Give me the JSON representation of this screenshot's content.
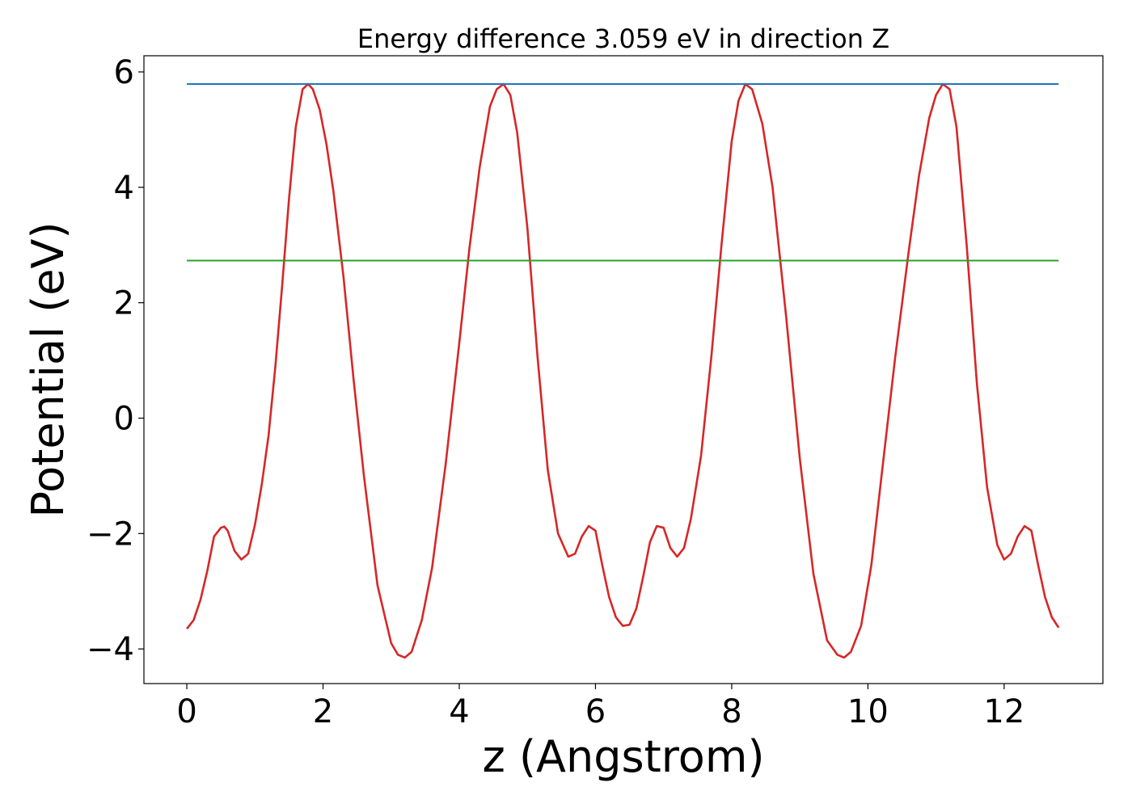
{
  "chart_data": {
    "type": "line",
    "title": "Energy difference 3.059 eV in direction Z",
    "xlabel": "z (Angstrom)",
    "ylabel": "Potential (eV)",
    "xlim": [
      -0.63,
      13.45
    ],
    "ylim": [
      -4.6,
      6.28
    ],
    "xticks": [
      0,
      2,
      4,
      6,
      8,
      10,
      12
    ],
    "yticks": [
      -4,
      -2,
      0,
      2,
      4,
      6
    ],
    "grid": false,
    "legend": "none",
    "series": [
      {
        "color": "#d62728",
        "x": [
          0.0,
          0.1,
          0.2,
          0.3,
          0.4,
          0.5,
          0.55,
          0.6,
          0.7,
          0.8,
          0.9,
          1.0,
          1.1,
          1.2,
          1.3,
          1.4,
          1.5,
          1.6,
          1.7,
          1.78,
          1.85,
          1.95,
          2.05,
          2.15,
          2.3,
          2.45,
          2.6,
          2.8,
          3.0,
          3.1,
          3.2,
          3.3,
          3.45,
          3.6,
          3.8,
          4.0,
          4.15,
          4.3,
          4.45,
          4.55,
          4.65,
          4.75,
          4.85,
          5.0,
          5.15,
          5.3,
          5.45,
          5.6,
          5.7,
          5.8,
          5.9,
          6.0,
          6.1,
          6.2,
          6.3,
          6.4,
          6.5,
          6.6,
          6.7,
          6.8,
          6.9,
          7.0,
          7.1,
          7.2,
          7.3,
          7.4,
          7.55,
          7.7,
          7.85,
          8.0,
          8.1,
          8.2,
          8.3,
          8.45,
          8.6,
          8.8,
          9.0,
          9.2,
          9.4,
          9.55,
          9.65,
          9.75,
          9.9,
          10.05,
          10.2,
          10.4,
          10.6,
          10.75,
          10.9,
          11.0,
          11.1,
          11.2,
          11.3,
          11.45,
          11.6,
          11.75,
          11.9,
          12.0,
          12.1,
          12.2,
          12.3,
          12.4,
          12.5,
          12.6,
          12.7,
          12.8
        ],
        "y": [
          -3.65,
          -3.5,
          -3.15,
          -2.65,
          -2.05,
          -1.9,
          -1.88,
          -1.95,
          -2.3,
          -2.45,
          -2.35,
          -1.85,
          -1.15,
          -0.3,
          0.9,
          2.3,
          3.8,
          5.05,
          5.7,
          5.79,
          5.7,
          5.35,
          4.75,
          3.95,
          2.45,
          0.65,
          -1.0,
          -2.9,
          -3.9,
          -4.1,
          -4.15,
          -4.05,
          -3.5,
          -2.6,
          -0.8,
          1.3,
          2.95,
          4.35,
          5.4,
          5.7,
          5.79,
          5.6,
          4.95,
          3.3,
          1.05,
          -0.9,
          -2.0,
          -2.4,
          -2.35,
          -2.05,
          -1.87,
          -1.95,
          -2.55,
          -3.1,
          -3.45,
          -3.6,
          -3.58,
          -3.3,
          -2.75,
          -2.15,
          -1.87,
          -1.9,
          -2.25,
          -2.4,
          -2.25,
          -1.75,
          -0.65,
          1.05,
          3.0,
          4.8,
          5.5,
          5.79,
          5.7,
          5.1,
          4.0,
          1.75,
          -0.7,
          -2.7,
          -3.85,
          -4.1,
          -4.15,
          -4.05,
          -3.6,
          -2.55,
          -1.0,
          1.05,
          2.9,
          4.2,
          5.2,
          5.6,
          5.79,
          5.7,
          5.05,
          3.0,
          0.6,
          -1.2,
          -2.2,
          -2.45,
          -2.35,
          -2.05,
          -1.87,
          -1.95,
          -2.55,
          -3.1,
          -3.45,
          -3.63
        ]
      },
      {
        "color": "#1f77b4",
        "x": [
          0.0,
          12.8
        ],
        "y": [
          5.79,
          5.79
        ]
      },
      {
        "color": "#2ca02c",
        "x": [
          0.0,
          12.8
        ],
        "y": [
          2.73,
          2.73
        ]
      }
    ]
  }
}
